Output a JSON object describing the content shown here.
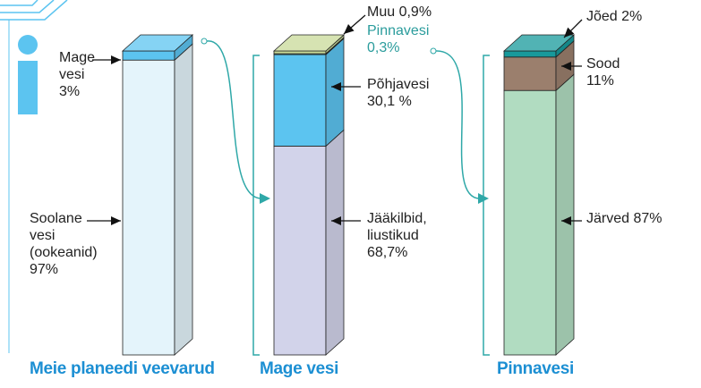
{
  "chart_data": [
    {
      "type": "stacked-column",
      "title": "Meie planeedi veevarud",
      "series": [
        {
          "name": "Soolane vesi (ookeanid)",
          "color": "#e4f4fb",
          "values": [
            97
          ],
          "value_labels": [
            "97%"
          ]
        },
        {
          "name": "Mage vesi",
          "color": "#5cc4f0",
          "values": [
            3
          ],
          "value_labels": [
            "3%"
          ]
        }
      ]
    },
    {
      "type": "stacked-column",
      "title": "Mage vesi",
      "series": [
        {
          "name": "Jääkilbid, liustikud",
          "color": "#d2d3ea",
          "values": [
            68.7
          ],
          "value_labels": [
            "68,7%"
          ]
        },
        {
          "name": "Põhjavesi",
          "color": "#5cc4f0",
          "values": [
            30.1
          ],
          "value_labels": [
            "30,1 %"
          ]
        },
        {
          "name": "Pinnavesi",
          "color": "#6fbfae",
          "values": [
            0.3
          ],
          "value_labels": [
            "0,3%"
          ]
        },
        {
          "name": "Muu",
          "color": "#c8da98",
          "values": [
            0.9
          ],
          "value_labels": [
            "0,9%"
          ]
        }
      ]
    },
    {
      "type": "stacked-column",
      "title": "Pinnavesi",
      "series": [
        {
          "name": "Järved",
          "color": "#b1dcc1",
          "values": [
            87
          ],
          "value_labels": [
            "87%"
          ]
        },
        {
          "name": "Sood",
          "color": "#9b7f6d",
          "values": [
            11
          ],
          "value_labels": [
            "11%"
          ]
        },
        {
          "name": "Jõed",
          "color": "#17999b",
          "values": [
            2
          ],
          "value_labels": [
            "2%"
          ]
        }
      ]
    }
  ]
}
